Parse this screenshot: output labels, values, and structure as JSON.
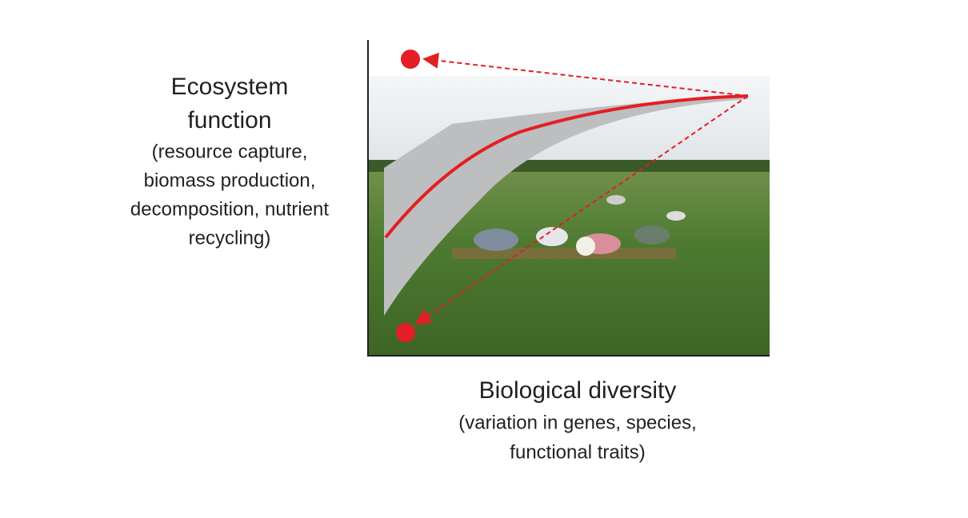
{
  "y_axis_label": {
    "title_lines": [
      "Ecosystem",
      "function"
    ],
    "detail_lines": [
      "(resource capture,",
      "biomass production,",
      "decomposition, nutrient",
      "recycling)"
    ]
  },
  "x_axis_label": {
    "title_lines": [
      "Biological diversity"
    ],
    "detail_lines": [
      "(variation in genes, species,",
      "functional traits)"
    ]
  }
}
